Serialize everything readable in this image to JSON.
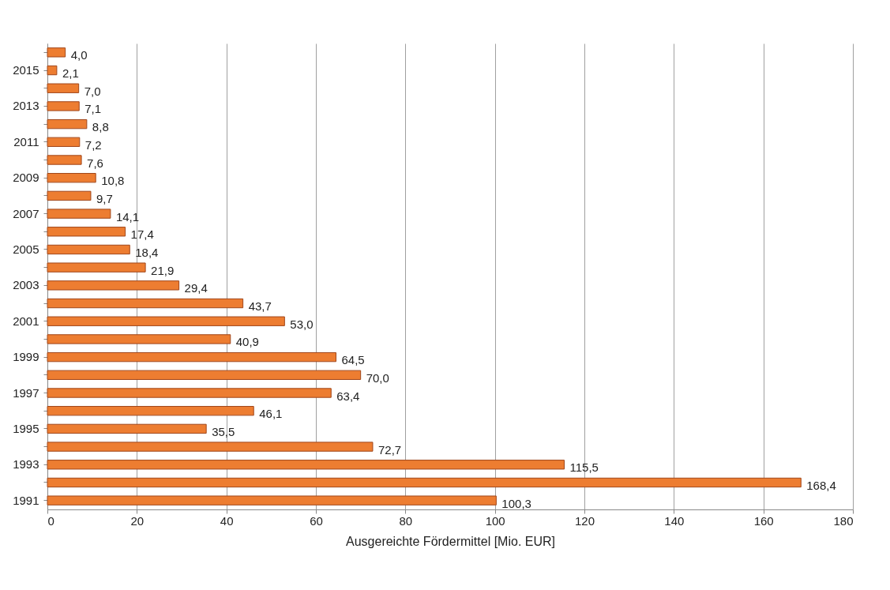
{
  "chart_data": {
    "type": "bar",
    "orientation": "horizontal",
    "xlabel": "Ausgereichte Fördermittel [Mio. EUR]",
    "categories": [
      null,
      "2015",
      null,
      "2013",
      null,
      "2011",
      null,
      "2009",
      null,
      "2007",
      null,
      "2005",
      null,
      "2003",
      null,
      "2001",
      null,
      "1999",
      null,
      "1997",
      null,
      "1995",
      null,
      "1993",
      null,
      "1991"
    ],
    "values": [
      4.0,
      2.1,
      7.0,
      7.1,
      8.8,
      7.2,
      7.6,
      10.8,
      9.7,
      14.1,
      17.4,
      18.4,
      21.9,
      29.4,
      43.7,
      53.0,
      40.9,
      64.5,
      70.0,
      63.4,
      46.1,
      35.5,
      72.7,
      115.5,
      168.4,
      100.3
    ],
    "value_labels": [
      "4,0",
      "2,1",
      "7,0",
      "7,1",
      "8,8",
      "7,2",
      "7,6",
      "10,8",
      "9,7",
      "14,1",
      "17,4",
      "18,4",
      "21,9",
      "29,4",
      "43,7",
      "53,0",
      "40,9",
      "64,5",
      "70,0",
      "63,4",
      "46,1",
      "35,5",
      "72,7",
      "115,5",
      "168,4",
      "100,3"
    ],
    "color": "#ed7d31",
    "xlim": [
      0,
      180
    ],
    "xticks": [
      0,
      20,
      40,
      60,
      80,
      100,
      120,
      140,
      160,
      180
    ],
    "grid": "x"
  }
}
